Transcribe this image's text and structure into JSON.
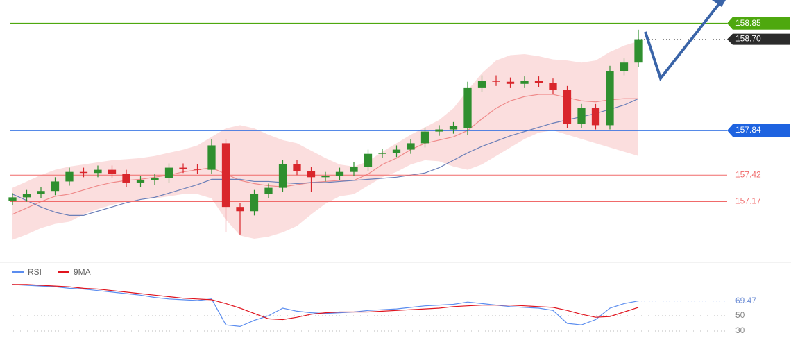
{
  "chart_data": [
    {
      "type": "candlestick",
      "open": [
        157.18,
        157.21,
        157.24,
        157.27,
        157.36,
        157.45,
        157.44,
        157.47,
        157.43,
        157.35,
        157.37,
        157.39,
        157.49,
        157.48,
        157.47,
        157.72,
        157.12,
        157.08,
        157.24,
        157.3,
        157.52,
        157.46,
        157.4,
        157.41,
        157.45,
        157.5,
        157.62,
        157.63,
        157.66,
        157.72,
        157.83,
        157.85,
        157.86,
        158.24,
        158.31,
        158.3,
        158.28,
        158.31,
        158.29,
        158.22,
        157.9,
        158.05,
        157.89,
        158.4,
        158.48
      ],
      "high": [
        157.25,
        157.28,
        157.31,
        157.4,
        157.49,
        157.49,
        157.51,
        157.51,
        157.47,
        157.41,
        157.43,
        157.53,
        157.53,
        157.52,
        157.76,
        157.76,
        157.16,
        157.28,
        157.34,
        157.56,
        157.56,
        157.5,
        157.45,
        157.49,
        157.54,
        157.66,
        157.67,
        157.7,
        157.76,
        157.87,
        157.89,
        157.92,
        158.3,
        158.36,
        158.36,
        158.34,
        158.35,
        158.35,
        158.33,
        158.26,
        158.09,
        158.09,
        158.45,
        158.52,
        158.79
      ],
      "low": [
        157.14,
        157.17,
        157.2,
        157.23,
        157.32,
        157.4,
        157.4,
        157.39,
        157.31,
        157.31,
        157.33,
        157.35,
        157.44,
        157.43,
        157.43,
        156.88,
        156.86,
        157.04,
        157.2,
        157.26,
        157.42,
        157.26,
        157.36,
        157.37,
        157.41,
        157.46,
        157.58,
        157.59,
        157.62,
        157.68,
        157.79,
        157.81,
        157.8,
        158.2,
        158.26,
        158.24,
        158.24,
        158.25,
        158.18,
        157.86,
        157.86,
        157.85,
        157.85,
        158.36,
        158.44
      ],
      "close": [
        157.21,
        157.24,
        157.27,
        157.36,
        157.45,
        157.44,
        157.47,
        157.43,
        157.35,
        157.37,
        157.39,
        157.49,
        157.48,
        157.47,
        157.7,
        157.12,
        157.08,
        157.24,
        157.3,
        157.52,
        157.46,
        157.4,
        157.41,
        157.45,
        157.5,
        157.62,
        157.63,
        157.66,
        157.72,
        157.83,
        157.85,
        157.88,
        158.24,
        158.31,
        158.3,
        158.28,
        158.31,
        158.29,
        158.22,
        157.9,
        158.05,
        157.89,
        158.4,
        158.48,
        158.7
      ],
      "up_color": "#2f8f2f",
      "down_color": "#d9262c",
      "bands": {
        "color": "#f7b6b6",
        "upper": [
          157.3,
          157.36,
          157.42,
          157.47,
          157.5,
          157.52,
          157.54,
          157.56,
          157.57,
          157.58,
          157.6,
          157.63,
          157.66,
          157.7,
          157.78,
          157.86,
          157.89,
          157.86,
          157.8,
          157.75,
          157.72,
          157.65,
          157.58,
          157.52,
          157.5,
          157.55,
          157.64,
          157.72,
          157.8,
          157.87,
          157.94,
          158.05,
          158.22,
          158.38,
          158.5,
          158.55,
          158.56,
          158.54,
          158.51,
          158.5,
          158.48,
          158.5,
          158.58,
          158.64,
          158.68
        ],
        "lower": [
          156.81,
          156.86,
          156.92,
          156.96,
          156.98,
          157.05,
          157.1,
          157.14,
          157.17,
          157.19,
          157.2,
          157.22,
          157.24,
          157.24,
          157.2,
          157.0,
          156.85,
          156.82,
          156.84,
          156.88,
          156.94,
          157.05,
          157.15,
          157.22,
          157.24,
          157.32,
          157.4,
          157.45,
          157.52,
          157.56,
          157.55,
          157.5,
          157.47,
          157.52,
          157.6,
          157.68,
          157.76,
          157.82,
          157.84,
          157.8,
          157.76,
          157.72,
          157.68,
          157.64,
          157.6
        ]
      },
      "lines": [
        {
          "color": "#ef8a8a",
          "values": [
            157.05,
            157.11,
            157.17,
            157.22,
            157.24,
            157.28,
            157.32,
            157.35,
            157.37,
            157.38,
            157.4,
            157.42,
            157.45,
            157.47,
            157.49,
            157.43,
            157.37,
            157.34,
            157.32,
            157.31,
            157.33,
            157.35,
            157.36,
            157.37,
            157.37,
            157.43,
            157.52,
            157.58,
            157.66,
            157.72,
            157.75,
            157.78,
            157.84,
            157.95,
            158.05,
            158.12,
            158.16,
            158.18,
            158.18,
            158.15,
            158.12,
            158.11,
            158.13,
            158.14,
            158.14
          ]
        },
        {
          "color": "#6b7fb8",
          "values": [
            157.24,
            157.18,
            157.12,
            157.07,
            157.04,
            157.04,
            157.08,
            157.12,
            157.16,
            157.19,
            157.21,
            157.25,
            157.29,
            157.33,
            157.38,
            157.38,
            157.38,
            157.36,
            157.36,
            157.35,
            157.34,
            157.35,
            157.35,
            157.36,
            157.37,
            157.38,
            157.39,
            157.4,
            157.42,
            157.44,
            157.49,
            157.56,
            157.63,
            157.69,
            157.74,
            157.79,
            157.83,
            157.87,
            157.91,
            157.94,
            157.97,
            158.0,
            158.04,
            158.08,
            158.14
          ]
        }
      ],
      "last_price": {
        "value": 158.7,
        "label": "158.70"
      },
      "levels": [
        {
          "value": 158.85,
          "color": "#4ea80e",
          "boxed": true
        },
        {
          "value": 157.84,
          "color": "#1e63e0",
          "boxed": true
        },
        {
          "value": 157.42,
          "color": "#f06a6a",
          "boxed": false
        },
        {
          "value": 157.17,
          "color": "#f06a6a",
          "boxed": false
        }
      ],
      "ylim": [
        156.65,
        159.07
      ]
    },
    {
      "type": "line",
      "series": [
        {
          "name": "RSI",
          "color": "#5b8def",
          "values": [
            91,
            90,
            89,
            88,
            86,
            85,
            83,
            81,
            79,
            77,
            74,
            72,
            71,
            70,
            72,
            38,
            36,
            44,
            50,
            60,
            56,
            54,
            53,
            54,
            55,
            57,
            58,
            59,
            61,
            63,
            64,
            65,
            68,
            66,
            64,
            62,
            61,
            60,
            57,
            40,
            38,
            45,
            60,
            66,
            69.47
          ]
        },
        {
          "name": "9MA",
          "color": "#e0141e",
          "values": [
            91,
            91,
            90,
            89,
            88,
            86,
            85,
            83,
            81,
            79,
            77,
            75,
            73,
            72,
            71,
            66,
            60,
            53,
            46,
            45,
            48,
            52,
            54,
            55,
            55,
            55,
            56,
            57,
            58,
            59,
            60,
            62,
            63,
            64,
            64,
            64,
            63,
            62,
            61,
            57,
            52,
            48,
            49,
            55,
            61
          ]
        }
      ],
      "last_value": 69.47,
      "ylim": [
        20,
        100
      ],
      "yticks": [
        30,
        50
      ]
    }
  ]
}
